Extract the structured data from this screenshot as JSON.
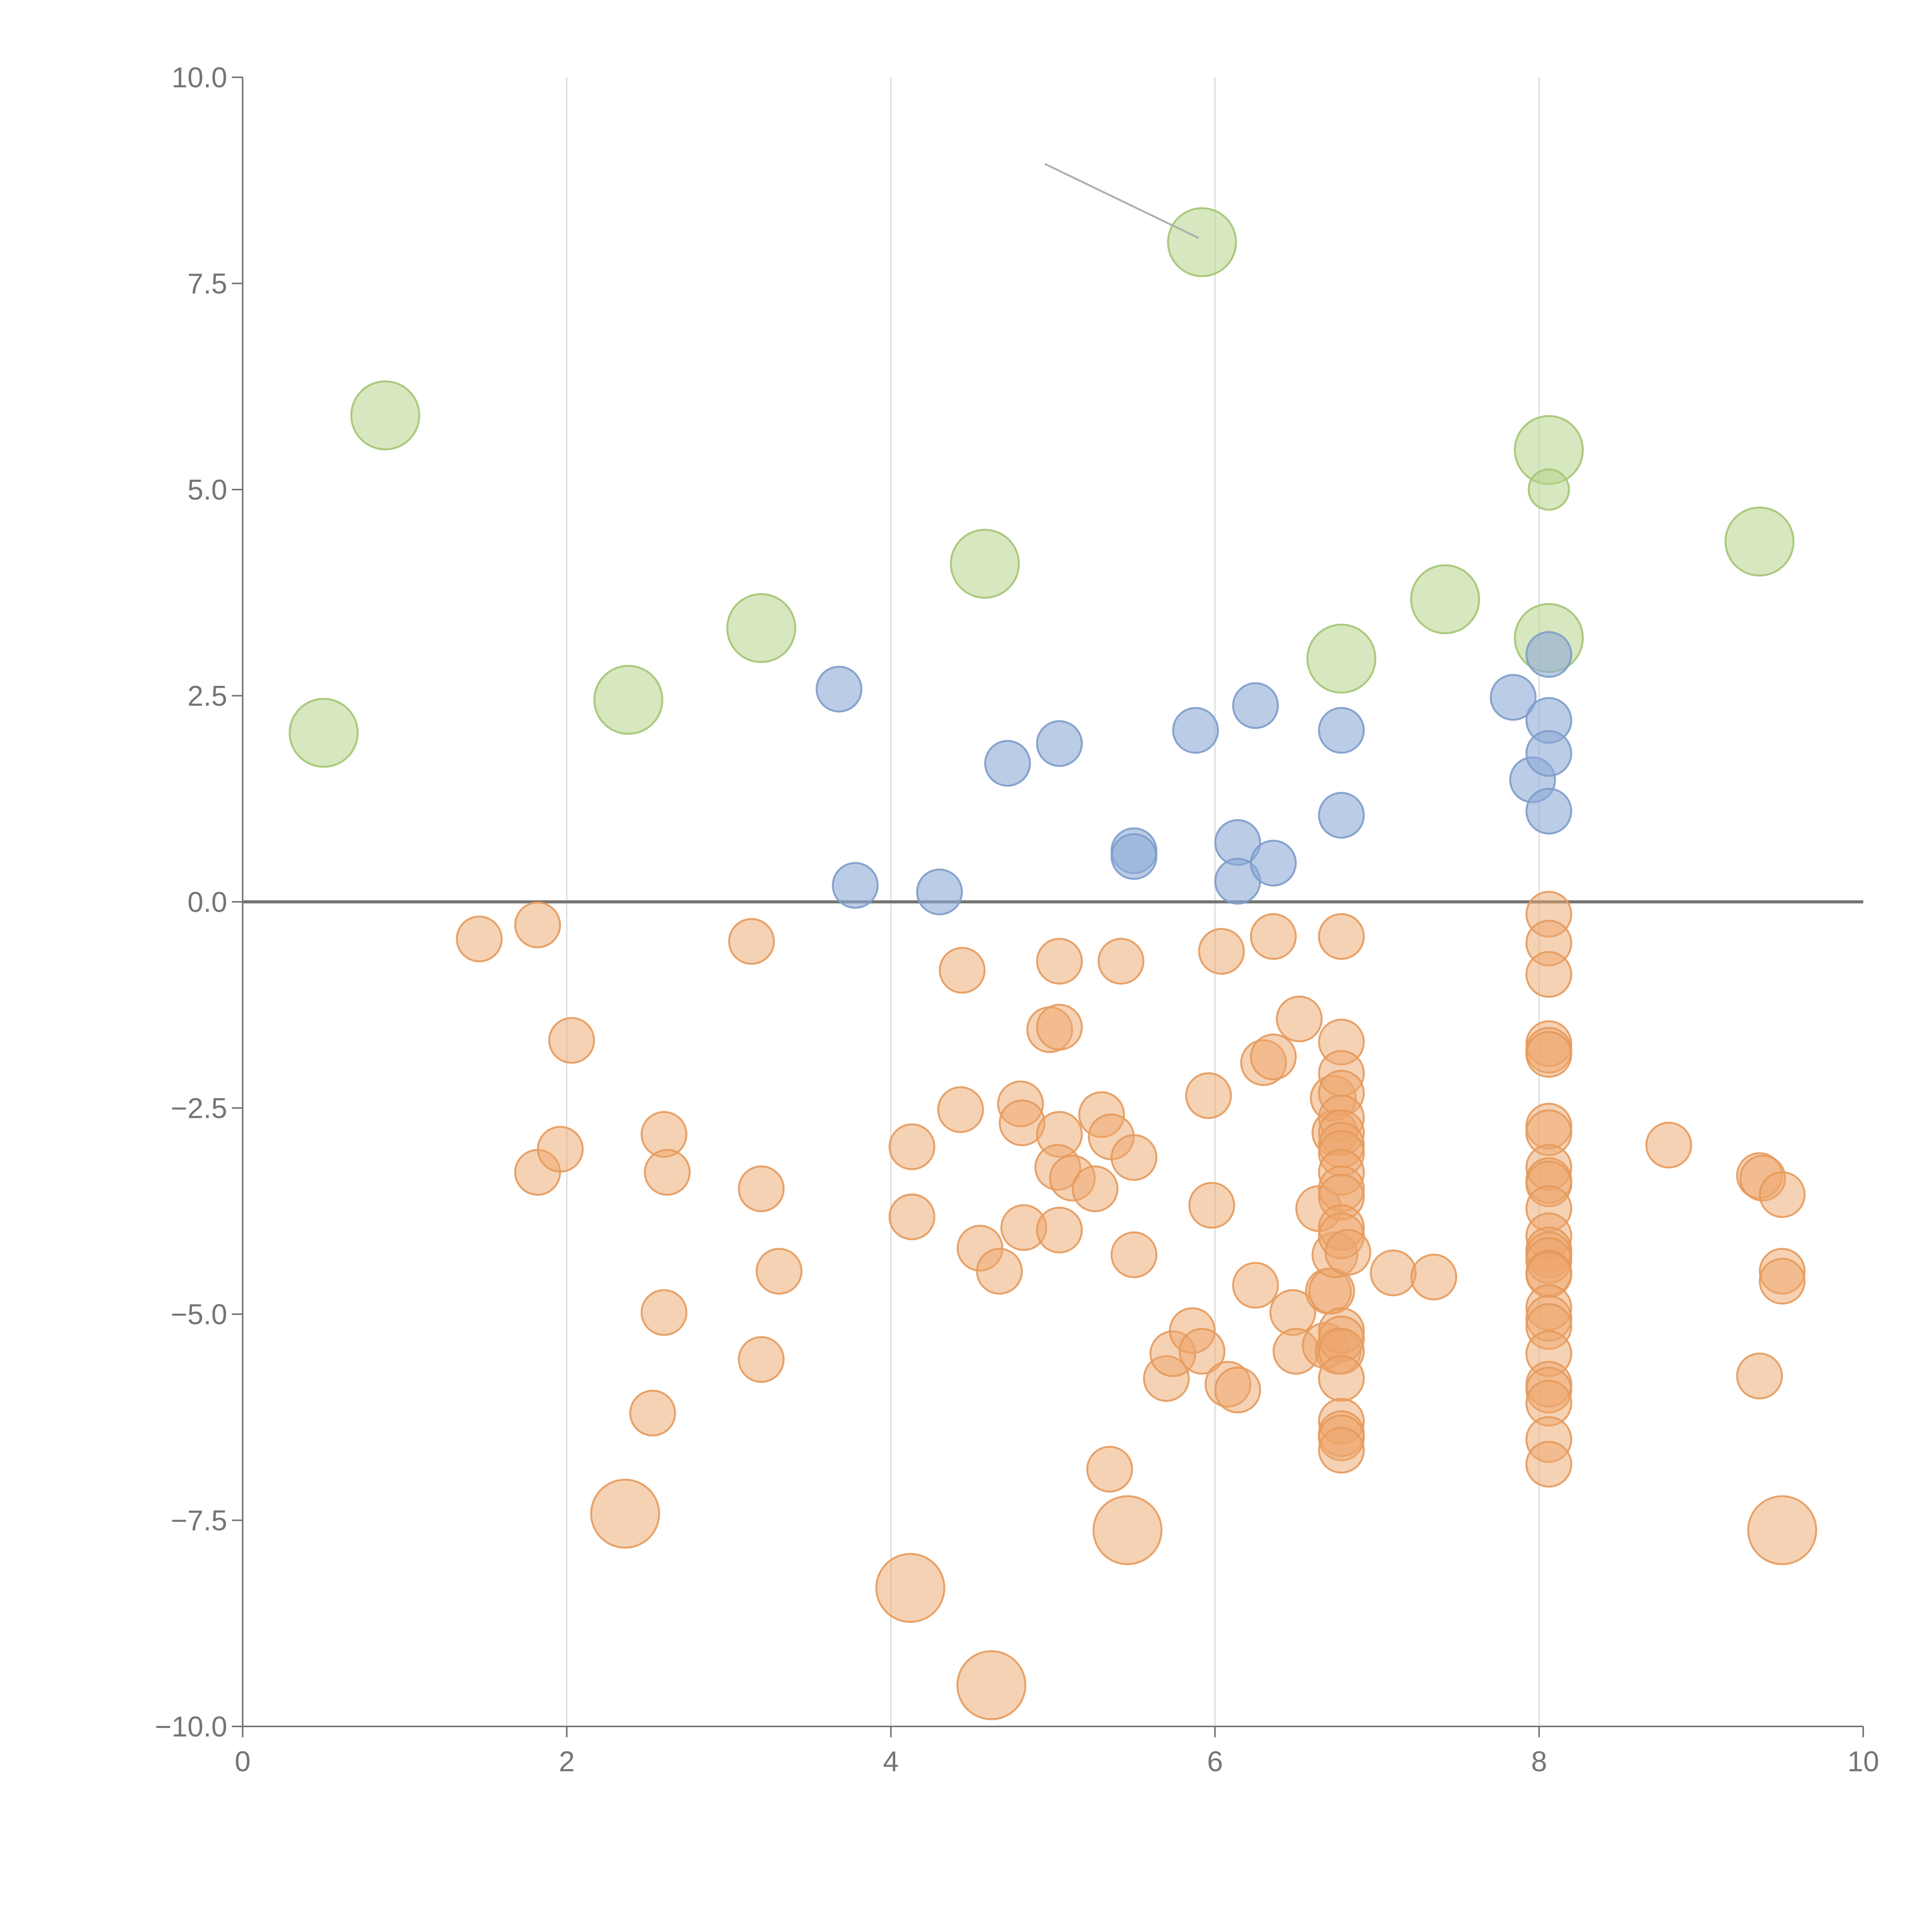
{
  "chart_data": {
    "type": "scatter",
    "title": "",
    "xlabel": "",
    "ylabel": "",
    "xlim": [
      0,
      10
    ],
    "ylim": [
      -10,
      10
    ],
    "x_ticks": [
      0,
      2,
      4,
      6,
      8,
      10
    ],
    "y_ticks": [
      -10.0,
      -7.5,
      -5.0,
      -2.5,
      0.0,
      2.5,
      5.0,
      7.5,
      10.0
    ],
    "x_tick_labels": [
      "0",
      "2",
      "4",
      "6",
      "8",
      "10"
    ],
    "y_tick_labels": [
      "−10.0",
      "−7.5",
      "−5.0",
      "−2.5",
      "0.0",
      "2.5",
      "5.0",
      "7.5",
      "10.0"
    ],
    "grid_x": true,
    "grid_y": false,
    "zero_line": true,
    "legend": "none",
    "series": [
      {
        "color": "#b7d48a",
        "stroke": "#a3c573",
        "opacity": 0.55,
        "points": [
          [
            0.5,
            2.05,
            1
          ],
          [
            0.88,
            5.9,
            1
          ],
          [
            2.38,
            2.45,
            1
          ],
          [
            3.2,
            3.32,
            1
          ],
          [
            4.58,
            4.1,
            1
          ],
          [
            5.92,
            8.0,
            1
          ],
          [
            6.78,
            2.95,
            1
          ],
          [
            7.42,
            3.67,
            1
          ],
          [
            8.06,
            5.48,
            1
          ],
          [
            8.06,
            5.0,
            0.45
          ],
          [
            8.06,
            3.2,
            1
          ],
          [
            9.36,
            4.37,
            1
          ]
        ]
      },
      {
        "color": "#8daad6",
        "stroke": "#7d9ccb",
        "opacity": 0.6,
        "points": [
          [
            3.68,
            2.58,
            1
          ],
          [
            3.78,
            0.2,
            1
          ],
          [
            4.3,
            0.12,
            1
          ],
          [
            4.72,
            1.68,
            1
          ],
          [
            5.04,
            1.92,
            1
          ],
          [
            5.5,
            0.62,
            1
          ],
          [
            5.5,
            0.55,
            1
          ],
          [
            5.88,
            2.08,
            1
          ],
          [
            6.14,
            0.72,
            1
          ],
          [
            6.14,
            0.25,
            1
          ],
          [
            6.25,
            2.38,
            1
          ],
          [
            6.36,
            0.47,
            1
          ],
          [
            6.78,
            2.08,
            1
          ],
          [
            6.78,
            1.05,
            1
          ],
          [
            7.84,
            2.48,
            1
          ],
          [
            7.96,
            1.48,
            1
          ],
          [
            8.06,
            3.0,
            1
          ],
          [
            8.06,
            2.2,
            1
          ],
          [
            8.06,
            1.8,
            1
          ],
          [
            8.06,
            1.1,
            1
          ]
        ]
      },
      {
        "color": "#eda66b",
        "stroke": "#e59a5c",
        "opacity": 0.5,
        "points": [
          [
            1.46,
            -0.45,
            1
          ],
          [
            1.82,
            -0.28,
            1
          ],
          [
            2.03,
            -1.68,
            1
          ],
          [
            1.82,
            -3.28,
            1
          ],
          [
            1.96,
            -3.0,
            1
          ],
          [
            2.6,
            -2.82,
            1
          ],
          [
            2.62,
            -3.28,
            1
          ],
          [
            2.6,
            -4.98,
            1
          ],
          [
            2.53,
            -6.2,
            1
          ],
          [
            2.36,
            -7.42,
            2
          ],
          [
            3.14,
            -0.48,
            1
          ],
          [
            3.2,
            -3.48,
            1
          ],
          [
            3.31,
            -4.48,
            1
          ],
          [
            3.2,
            -5.55,
            1
          ],
          [
            4.13,
            -2.97,
            1
          ],
          [
            4.13,
            -3.82,
            1
          ],
          [
            4.12,
            -8.32,
            2
          ],
          [
            4.44,
            -0.83,
            1
          ],
          [
            4.43,
            -2.52,
            1
          ],
          [
            4.55,
            -4.2,
            1
          ],
          [
            4.67,
            -4.48,
            1
          ],
          [
            4.62,
            -9.5,
            2
          ],
          [
            4.8,
            -2.45,
            1
          ],
          [
            4.81,
            -2.68,
            1
          ],
          [
            4.82,
            -3.95,
            1
          ],
          [
            4.98,
            -1.55,
            1
          ],
          [
            5.04,
            -0.72,
            1
          ],
          [
            5.04,
            -1.52,
            1
          ],
          [
            5.04,
            -2.82,
            1
          ],
          [
            5.03,
            -3.22,
            1
          ],
          [
            5.04,
            -3.98,
            1
          ],
          [
            5.12,
            -3.35,
            1
          ],
          [
            5.26,
            -3.48,
            1
          ],
          [
            5.3,
            -2.58,
            1
          ],
          [
            5.36,
            -2.85,
            1
          ],
          [
            5.35,
            -6.88,
            1
          ],
          [
            5.42,
            -0.72,
            1
          ],
          [
            5.46,
            -7.62,
            2
          ],
          [
            5.5,
            -3.1,
            1
          ],
          [
            5.5,
            -4.28,
            1
          ],
          [
            5.7,
            -5.78,
            1
          ],
          [
            5.74,
            -5.48,
            1
          ],
          [
            5.86,
            -5.2,
            1
          ],
          [
            5.92,
            -5.45,
            1
          ],
          [
            5.96,
            -2.35,
            1
          ],
          [
            5.98,
            -3.68,
            1
          ],
          [
            6.04,
            -0.6,
            1
          ],
          [
            6.08,
            -5.85,
            1
          ],
          [
            6.14,
            -5.92,
            1
          ],
          [
            6.25,
            -4.65,
            1
          ],
          [
            6.3,
            -1.95,
            1
          ],
          [
            6.36,
            -0.42,
            1
          ],
          [
            6.36,
            -1.88,
            1
          ],
          [
            6.48,
            -4.98,
            1
          ],
          [
            6.5,
            -5.45,
            1
          ],
          [
            6.52,
            -1.42,
            1
          ],
          [
            6.64,
            -3.72,
            1
          ],
          [
            6.68,
            -5.38,
            1
          ],
          [
            6.7,
            -4.72,
            1
          ],
          [
            6.72,
            -4.72,
            1
          ],
          [
            6.73,
            -2.38,
            1
          ],
          [
            6.74,
            -2.8,
            1
          ],
          [
            6.74,
            -4.28,
            1
          ],
          [
            6.76,
            -5.45,
            1
          ],
          [
            6.78,
            -0.42,
            1
          ],
          [
            6.78,
            -1.7,
            1
          ],
          [
            6.78,
            -2.08,
            1
          ],
          [
            6.78,
            -2.32,
            1
          ],
          [
            6.78,
            -2.62,
            1
          ],
          [
            6.78,
            -2.8,
            1
          ],
          [
            6.78,
            -2.95,
            1
          ],
          [
            6.78,
            -3.05,
            1
          ],
          [
            6.78,
            -3.28,
            1
          ],
          [
            6.78,
            -3.48,
            1
          ],
          [
            6.78,
            -3.58,
            1
          ],
          [
            6.78,
            -3.95,
            1
          ],
          [
            6.78,
            -4.05,
            1
          ],
          [
            6.78,
            -5.2,
            1
          ],
          [
            6.78,
            -5.3,
            1
          ],
          [
            6.78,
            -5.45,
            1
          ],
          [
            6.78,
            -5.78,
            1
          ],
          [
            6.78,
            -6.3,
            1
          ],
          [
            6.78,
            -6.45,
            1
          ],
          [
            6.78,
            -6.5,
            1
          ],
          [
            6.78,
            -6.65,
            1
          ],
          [
            6.82,
            -4.25,
            1
          ],
          [
            7.1,
            -4.5,
            1
          ],
          [
            7.35,
            -4.55,
            1
          ],
          [
            8.06,
            -0.15,
            1
          ],
          [
            8.06,
            -0.5,
            1
          ],
          [
            8.06,
            -0.88,
            1
          ],
          [
            8.06,
            -1.72,
            1
          ],
          [
            8.06,
            -1.8,
            1
          ],
          [
            8.06,
            -1.85,
            1
          ],
          [
            8.06,
            -2.72,
            1
          ],
          [
            8.06,
            -2.8,
            1
          ],
          [
            8.06,
            -3.22,
            1
          ],
          [
            8.06,
            -3.38,
            1
          ],
          [
            8.06,
            -3.42,
            1
          ],
          [
            8.06,
            -3.72,
            1
          ],
          [
            8.06,
            -4.05,
            1
          ],
          [
            8.06,
            -4.22,
            1
          ],
          [
            8.06,
            -4.28,
            1
          ],
          [
            8.06,
            -4.35,
            1
          ],
          [
            8.06,
            -4.5,
            1
          ],
          [
            8.06,
            -4.52,
            1
          ],
          [
            8.06,
            -4.92,
            1
          ],
          [
            8.06,
            -5.05,
            1
          ],
          [
            8.06,
            -5.15,
            1
          ],
          [
            8.06,
            -5.48,
            1
          ],
          [
            8.06,
            -5.85,
            1
          ],
          [
            8.06,
            -5.92,
            1
          ],
          [
            8.06,
            -6.08,
            1
          ],
          [
            8.06,
            -6.52,
            1
          ],
          [
            8.06,
            -6.82,
            1
          ],
          [
            8.8,
            -2.95,
            1
          ],
          [
            9.36,
            -3.32,
            1
          ],
          [
            9.38,
            -3.35,
            1
          ],
          [
            9.36,
            -5.75,
            1
          ],
          [
            9.5,
            -3.55,
            1
          ],
          [
            9.5,
            -4.48,
            1
          ],
          [
            9.5,
            -4.6,
            1
          ],
          [
            9.5,
            -7.62,
            2
          ]
        ]
      }
    ],
    "leader_lines": [
      [
        [
          4.95,
          8.95
        ],
        [
          5.9,
          8.05
        ]
      ]
    ]
  }
}
